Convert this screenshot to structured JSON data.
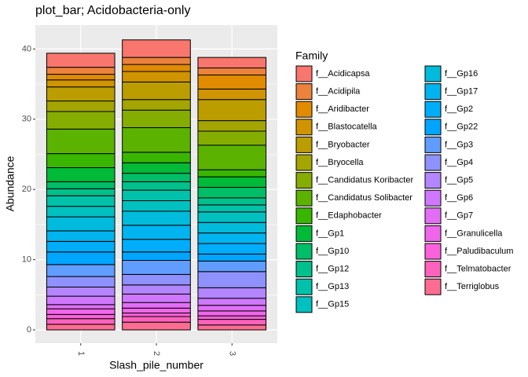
{
  "chart_data": {
    "type": "stacked_bar",
    "title": "plot_bar; Acidobacteria-only",
    "x_label": "Slash_pile_number",
    "y_label": "Abundance",
    "legend_title": "Family",
    "categories": [
      "1",
      "2",
      "3"
    ],
    "ylim": [
      -1.9,
      43.4
    ],
    "yticks": [
      0,
      10,
      20,
      30,
      40
    ],
    "grid": true,
    "series": [
      {
        "name": "f__Acidicapsa",
        "color": "#F8766D",
        "values": [
          2.0,
          2.5,
          1.5
        ]
      },
      {
        "name": "f__Acidipila",
        "color": "#EC823C",
        "values": [
          1.0,
          1.0,
          1.0
        ]
      },
      {
        "name": "f__Aridibacter",
        "color": "#E08B00",
        "values": [
          0.8,
          1.0,
          2.0
        ]
      },
      {
        "name": "f__Blastocatella",
        "color": "#D09400",
        "values": [
          1.0,
          1.5,
          1.5
        ]
      },
      {
        "name": "f__Bryobacter",
        "color": "#BB9D00",
        "values": [
          2.0,
          2.5,
          3.0
        ]
      },
      {
        "name": "f__Bryocella",
        "color": "#A3A500",
        "values": [
          1.5,
          1.5,
          1.5
        ]
      },
      {
        "name": "f__Candidatus Koribacter",
        "color": "#85AD00",
        "values": [
          2.5,
          2.5,
          2.0
        ]
      },
      {
        "name": "f__Candidatus Solibacter",
        "color": "#5BB300",
        "values": [
          3.5,
          3.5,
          3.5
        ]
      },
      {
        "name": "f__Edaphobacter",
        "color": "#39B600",
        "values": [
          2.0,
          1.5,
          1.0
        ]
      },
      {
        "name": "f__Gp1",
        "color": "#00BA38",
        "values": [
          2.0,
          1.5,
          1.5
        ]
      },
      {
        "name": "f__Gp10",
        "color": "#00BE67",
        "values": [
          1.0,
          1.2,
          1.5
        ]
      },
      {
        "name": "f__Gp12",
        "color": "#00C08B",
        "values": [
          1.0,
          1.2,
          1.0
        ]
      },
      {
        "name": "f__Gp13",
        "color": "#00C1A9",
        "values": [
          1.5,
          1.5,
          1.0
        ]
      },
      {
        "name": "f__Gp15",
        "color": "#00C0C0",
        "values": [
          1.5,
          1.5,
          1.5
        ]
      },
      {
        "name": "f__Gp16",
        "color": "#00BBDB",
        "values": [
          2.0,
          2.0,
          1.5
        ]
      },
      {
        "name": "f__Gp17",
        "color": "#00B4EF",
        "values": [
          1.5,
          2.0,
          1.5
        ]
      },
      {
        "name": "f__Gp2",
        "color": "#00ADFA",
        "values": [
          1.5,
          1.8,
          1.5
        ]
      },
      {
        "name": "f__Gp22",
        "color": "#00A5FF",
        "values": [
          1.8,
          1.2,
          1.0
        ]
      },
      {
        "name": "f__Gp3",
        "color": "#619CFF",
        "values": [
          1.7,
          2.0,
          1.5
        ]
      },
      {
        "name": "f__Gp4",
        "color": "#8F91FF",
        "values": [
          1.5,
          1.5,
          2.3
        ]
      },
      {
        "name": "f__Gp5",
        "color": "#B385FF",
        "values": [
          1.3,
          1.3,
          1.5
        ]
      },
      {
        "name": "f__Gp6",
        "color": "#CF78FF",
        "values": [
          1.2,
          1.2,
          1.0
        ]
      },
      {
        "name": "f__Gp7",
        "color": "#E36EF6",
        "values": [
          0.6,
          0.8,
          0.8
        ]
      },
      {
        "name": "f__Granulicella",
        "color": "#F066EA",
        "values": [
          0.8,
          0.7,
          0.7
        ]
      },
      {
        "name": "f__Paludibaculum",
        "color": "#FA62DB",
        "values": [
          0.6,
          0.5,
          0.5
        ]
      },
      {
        "name": "f__Telmatobacter",
        "color": "#FF62BC",
        "values": [
          0.8,
          0.8,
          0.8
        ]
      },
      {
        "name": "f__Terriglobus",
        "color": "#FF6C91",
        "values": [
          0.8,
          1.1,
          0.7
        ]
      }
    ]
  }
}
